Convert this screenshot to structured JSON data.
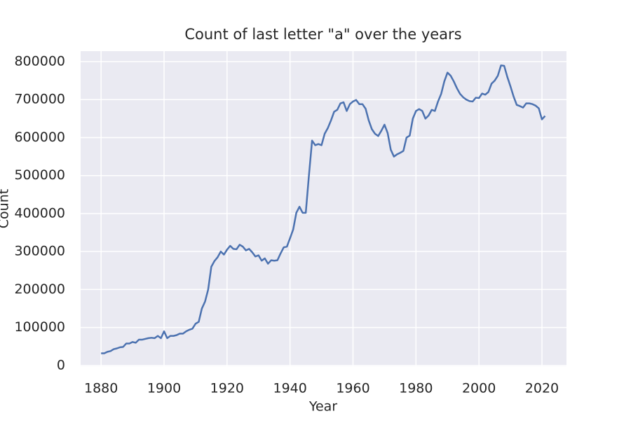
{
  "chart_data": {
    "type": "line",
    "title": "Count of last letter \"a\" over the years",
    "x_label": "Year",
    "y_label": "Count",
    "color": "#4c72b0",
    "grid": true,
    "x": [
      1880,
      1881,
      1882,
      1883,
      1884,
      1885,
      1886,
      1887,
      1888,
      1889,
      1890,
      1891,
      1892,
      1893,
      1894,
      1895,
      1896,
      1897,
      1898,
      1899,
      1900,
      1901,
      1902,
      1903,
      1904,
      1905,
      1906,
      1907,
      1908,
      1909,
      1910,
      1911,
      1912,
      1913,
      1914,
      1915,
      1916,
      1917,
      1918,
      1919,
      1920,
      1921,
      1922,
      1923,
      1924,
      1925,
      1926,
      1927,
      1928,
      1929,
      1930,
      1931,
      1932,
      1933,
      1934,
      1935,
      1936,
      1937,
      1938,
      1939,
      1940,
      1941,
      1942,
      1943,
      1944,
      1945,
      1946,
      1947,
      1948,
      1949,
      1950,
      1951,
      1952,
      1953,
      1954,
      1955,
      1956,
      1957,
      1958,
      1959,
      1960,
      1961,
      1962,
      1963,
      1964,
      1965,
      1966,
      1967,
      1968,
      1969,
      1970,
      1971,
      1972,
      1973,
      1974,
      1975,
      1976,
      1977,
      1978,
      1979,
      1980,
      1981,
      1982,
      1983,
      1984,
      1985,
      1986,
      1987,
      1988,
      1989,
      1990,
      1991,
      1992,
      1993,
      1994,
      1995,
      1996,
      1997,
      1998,
      1999,
      2000,
      2001,
      2002,
      2003,
      2004,
      2005,
      2006,
      2007,
      2008,
      2009,
      2010,
      2011,
      2012,
      2013,
      2014,
      2015,
      2016,
      2017,
      2018,
      2019,
      2020,
      2021
    ],
    "values": [
      32000,
      32000,
      36000,
      38000,
      43000,
      45000,
      48000,
      49000,
      58000,
      58000,
      62000,
      60000,
      68000,
      68000,
      70000,
      72000,
      73000,
      72000,
      78000,
      72000,
      90000,
      72000,
      78000,
      78000,
      80000,
      84000,
      84000,
      90000,
      94000,
      97000,
      110000,
      115000,
      150000,
      168000,
      200000,
      260000,
      275000,
      285000,
      300000,
      292000,
      305000,
      315000,
      307000,
      306000,
      318000,
      313000,
      303000,
      307000,
      298000,
      287000,
      290000,
      276000,
      282000,
      268000,
      277000,
      276000,
      277000,
      295000,
      311000,
      313000,
      335000,
      358000,
      402000,
      418000,
      402000,
      402000,
      500000,
      592000,
      580000,
      583000,
      580000,
      610000,
      625000,
      645000,
      668000,
      673000,
      690000,
      693000,
      670000,
      688000,
      695000,
      699000,
      688000,
      688000,
      676000,
      645000,
      622000,
      610000,
      604000,
      618000,
      634000,
      612000,
      568000,
      550000,
      556000,
      560000,
      565000,
      600000,
      605000,
      650000,
      670000,
      675000,
      670000,
      650000,
      658000,
      673000,
      670000,
      695000,
      715000,
      748000,
      771000,
      763000,
      748000,
      730000,
      715000,
      706000,
      700000,
      696000,
      695000,
      705000,
      704000,
      716000,
      713000,
      720000,
      742000,
      750000,
      763000,
      790000,
      789000,
      760000,
      735000,
      708000,
      686000,
      683000,
      679000,
      690000,
      690000,
      688000,
      684000,
      677000,
      648000,
      657000
    ],
    "xlim": [
      1873.5,
      2027.8
    ],
    "xticks": [
      1880,
      1900,
      1920,
      1940,
      1960,
      1980,
      2000,
      2020
    ],
    "ylim": [
      -2000,
      827600
    ],
    "yticks": [
      0,
      100000,
      200000,
      300000,
      400000,
      500000,
      600000,
      700000,
      800000
    ]
  }
}
